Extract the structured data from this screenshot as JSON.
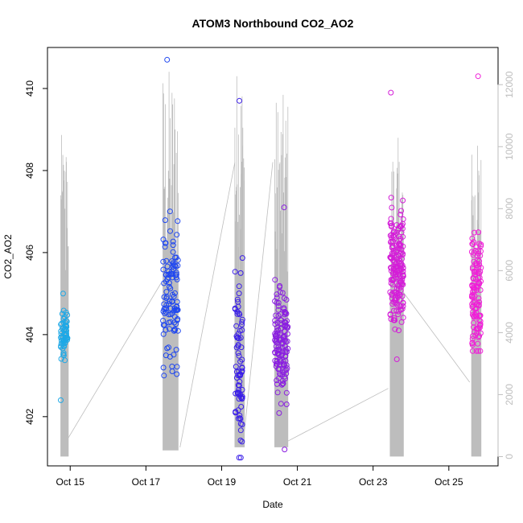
{
  "chart_data": {
    "type": "scatter",
    "title": "ATOM3 Northbound CO2_AO2",
    "xlabel": "Date",
    "ylabel": "CO2_AO2",
    "xlim": [
      14.4,
      26.3
    ],
    "ylim": [
      400.8,
      411.0
    ],
    "y2lim": [
      -300,
      13200
    ],
    "x_ticks": [
      {
        "value": 15,
        "label": "Oct 15"
      },
      {
        "value": 17,
        "label": "Oct 17"
      },
      {
        "value": 19,
        "label": "Oct 19"
      },
      {
        "value": 21,
        "label": "Oct 21"
      },
      {
        "value": 23,
        "label": "Oct 23"
      },
      {
        "value": 25,
        "label": "Oct 25"
      }
    ],
    "y_ticks": [
      402,
      404,
      406,
      408,
      410
    ],
    "y2_ticks": [
      0,
      2000,
      4000,
      6000,
      8000,
      10000,
      12000
    ],
    "secondary_series_color": "#bebebe",
    "secondary_series": {
      "comment_free": true,
      "segments": [
        {
          "x": [
            14.75,
            14.95
          ],
          "ymin": 0,
          "ymax": 10400
        },
        {
          "x": [
            17.45,
            17.85
          ],
          "ymin": 200,
          "ymax": 12600
        },
        {
          "x": [
            19.35,
            19.6
          ],
          "ymin": 300,
          "ymax": 12650
        },
        {
          "x": [
            20.4,
            20.75
          ],
          "ymin": 300,
          "ymax": 11700
        },
        {
          "x": [
            23.45,
            23.8
          ],
          "ymin": 0,
          "ymax": 10300
        },
        {
          "x": [
            25.6,
            25.85
          ],
          "ymin": 0,
          "ymax": 10200
        }
      ],
      "connectors": [
        {
          "x": [
            14.9,
            17.4
          ],
          "y": [
            500,
            5600
          ]
        },
        {
          "x": [
            17.9,
            19.35
          ],
          "y": [
            300,
            9500
          ]
        },
        {
          "x": [
            19.6,
            20.35
          ],
          "y": [
            800,
            9500
          ]
        },
        {
          "x": [
            20.75,
            23.4
          ],
          "y": [
            500,
            2200
          ]
        },
        {
          "x": [
            23.8,
            25.55
          ],
          "y": [
            5300,
            2400
          ]
        }
      ]
    },
    "groups": [
      {
        "xmin": 14.75,
        "xmax": 14.93,
        "ymin": 402.4,
        "ymax": 405.0,
        "center": 404.0,
        "n": 60,
        "color": "#1ea8e6"
      },
      {
        "xmin": 17.45,
        "xmax": 17.85,
        "ymin": 403.0,
        "ymax": 410.7,
        "center": 405.0,
        "n": 110,
        "color": "#1e46f0"
      },
      {
        "xmin": 19.35,
        "xmax": 19.55,
        "ymin": 401.0,
        "ymax": 409.7,
        "center": 403.5,
        "n": 80,
        "color": "#3a1ee8"
      },
      {
        "xmin": 20.4,
        "xmax": 20.75,
        "ymin": 401.2,
        "ymax": 407.1,
        "center": 403.8,
        "n": 140,
        "color": "#8a1ee0"
      },
      {
        "xmin": 23.45,
        "xmax": 23.8,
        "ymin": 403.4,
        "ymax": 409.9,
        "center": 405.5,
        "n": 190,
        "color": "#d41ed8"
      },
      {
        "xmin": 25.6,
        "xmax": 25.85,
        "ymin": 403.6,
        "ymax": 410.3,
        "center": 405.0,
        "n": 120,
        "color": "#f01ed8"
      }
    ]
  }
}
